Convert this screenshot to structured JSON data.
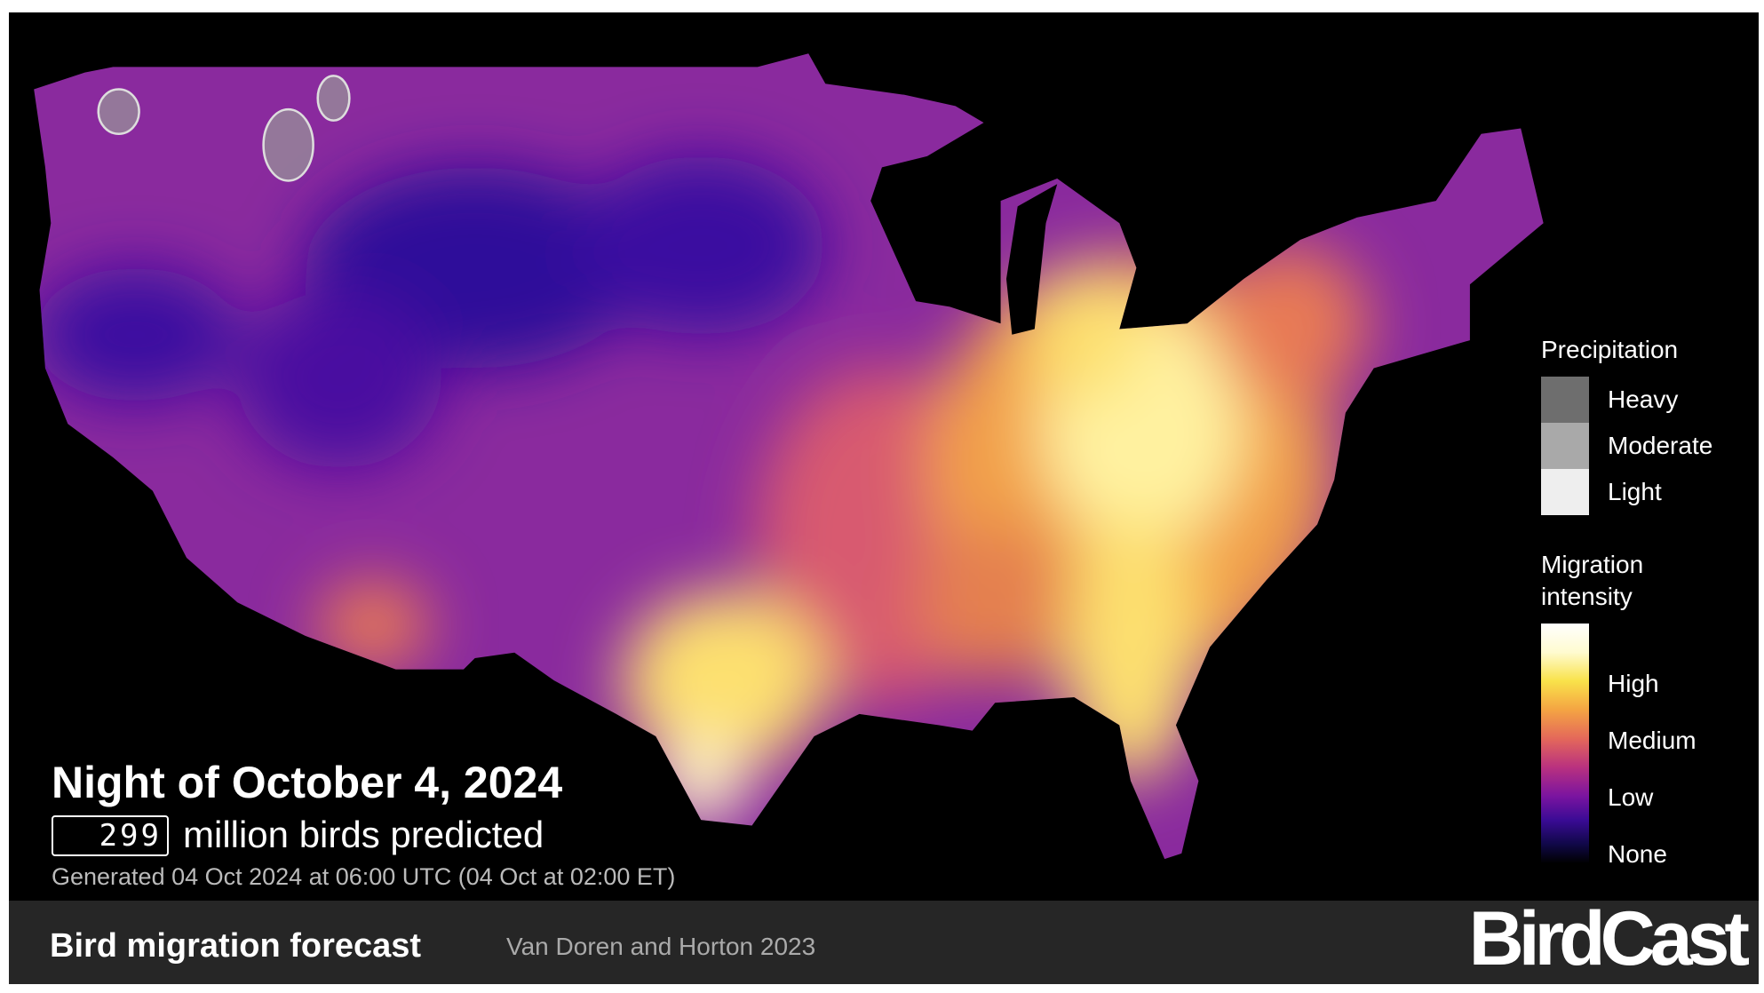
{
  "header": {
    "title": "Night of October 4, 2024",
    "count": "299",
    "count_label": "million birds predicted",
    "generated": "Generated 04 Oct 2024 at 06:00 UTC (04 Oct at 02:00 ET)"
  },
  "legend": {
    "precipitation": {
      "title": "Precipitation",
      "items": [
        "Heavy",
        "Moderate",
        "Light"
      ]
    },
    "migration": {
      "title": "Migration intensity",
      "items": [
        "High",
        "Medium",
        "Low",
        "None"
      ]
    }
  },
  "footer": {
    "title": "Bird migration forecast",
    "citation": "Van Doren and Horton 2023",
    "logo": "BirdCast"
  }
}
